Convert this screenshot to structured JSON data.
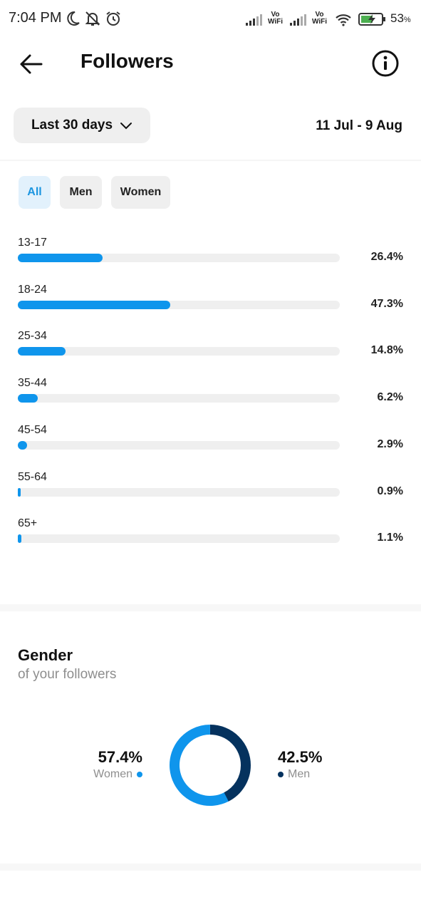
{
  "status_bar": {
    "time": "7:04 PM",
    "vowifi_1": "Vo\nWiFi",
    "vowifi_2": "Vo\nWiFi",
    "battery_percent": "53",
    "battery_unit": "%",
    "icons": [
      "moon-icon",
      "bell-off-icon",
      "alarm-icon",
      "signal-icon",
      "wifi-icon",
      "battery-charging-icon"
    ]
  },
  "header": {
    "title": "Followers",
    "back_icon": "arrow-left-icon",
    "info_icon": "info-icon"
  },
  "filter": {
    "range_label": "Last 30 days",
    "date_range": "11 Jul - 9 Aug"
  },
  "tabs": [
    {
      "label": "All",
      "active": true
    },
    {
      "label": "Men",
      "active": false
    },
    {
      "label": "Women",
      "active": false
    }
  ],
  "age_ranges": [
    {
      "label": "13-17",
      "value": "26.4%",
      "percent": 26.4
    },
    {
      "label": "18-24",
      "value": "47.3%",
      "percent": 47.3
    },
    {
      "label": "25-34",
      "value": "14.8%",
      "percent": 14.8
    },
    {
      "label": "35-44",
      "value": "6.2%",
      "percent": 6.2
    },
    {
      "label": "45-54",
      "value": "2.9%",
      "percent": 2.9
    },
    {
      "label": "55-64",
      "value": "0.9%",
      "percent": 0.9
    },
    {
      "label": "65+",
      "value": "1.1%",
      "percent": 1.1
    }
  ],
  "gender": {
    "title": "Gender",
    "subtitle": "of your followers",
    "women": {
      "value": "57.4%",
      "label": "Women",
      "percent": 57.4,
      "color": "#0f95ec"
    },
    "men": {
      "value": "42.5%",
      "label": "Men",
      "percent": 42.5,
      "color": "#05325e"
    }
  }
}
